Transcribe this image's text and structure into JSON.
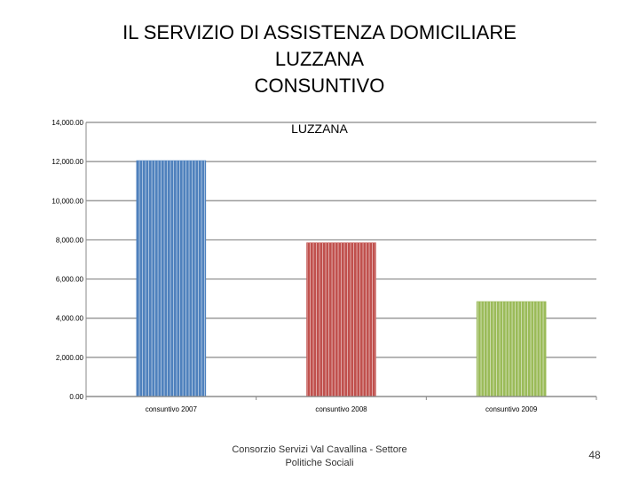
{
  "slide": {
    "title_lines": [
      "IL SERVIZIO DI ASSISTENZA DOMICILIARE",
      "LUZZANA",
      "CONSUNTIVO"
    ],
    "footer": "Consorzio Servizi Val Cavallina - Settore Politiche Sociali",
    "page_number": "48"
  },
  "chart_data": {
    "type": "bar",
    "title": "LUZZANA",
    "categories": [
      "consuntivo 2007",
      "consuntivo 2008",
      "consuntivo 2009"
    ],
    "values": [
      12050,
      7850,
      4850
    ],
    "colors": [
      "#4f81bd",
      "#c0504d",
      "#9bbb59"
    ],
    "ylim": [
      0,
      14000
    ],
    "yticks": [
      0,
      2000,
      4000,
      6000,
      8000,
      10000,
      12000,
      14000
    ],
    "ytick_labels": [
      "0.00",
      "2,000.00",
      "4,000.00",
      "6,000.00",
      "8,000.00",
      "10,000.00",
      "12,000.00",
      "14,000.00"
    ],
    "xlabel": "",
    "ylabel": "",
    "grid": true,
    "legend": "none"
  }
}
